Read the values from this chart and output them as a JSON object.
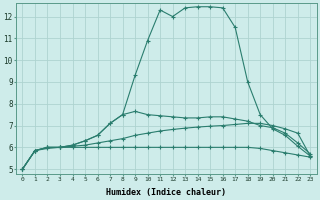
{
  "xlabel": "Humidex (Indice chaleur)",
  "bg_color": "#ceecea",
  "grid_color": "#aed4d0",
  "line_color": "#2a7d6e",
  "xmin": -0.5,
  "xmax": 23.5,
  "ymin": 4.8,
  "ymax": 12.6,
  "series": [
    {
      "x": [
        0,
        1,
        2,
        3,
        4,
        5,
        6,
        7,
        8,
        9,
        10,
        11,
        12,
        13,
        14,
        15,
        16,
        17,
        18,
        19,
        20,
        21,
        22,
        23
      ],
      "y": [
        5.0,
        5.85,
        5.95,
        6.0,
        6.0,
        6.0,
        6.0,
        6.0,
        6.0,
        6.0,
        6.0,
        6.0,
        6.0,
        6.0,
        6.0,
        6.0,
        6.0,
        6.0,
        6.0,
        5.95,
        5.85,
        5.75,
        5.65,
        5.55
      ]
    },
    {
      "x": [
        0,
        1,
        2,
        3,
        4,
        5,
        6,
        7,
        8,
        9,
        10,
        11,
        12,
        13,
        14,
        15,
        16,
        17,
        18,
        19,
        20,
        21,
        22,
        23
      ],
      "y": [
        5.0,
        5.85,
        6.0,
        6.0,
        6.05,
        6.1,
        6.2,
        6.3,
        6.4,
        6.55,
        6.65,
        6.75,
        6.82,
        6.88,
        6.93,
        6.97,
        7.0,
        7.05,
        7.1,
        7.1,
        7.0,
        6.85,
        6.65,
        5.6
      ]
    },
    {
      "x": [
        0,
        1,
        2,
        3,
        4,
        5,
        6,
        7,
        8,
        9,
        10,
        11,
        12,
        13,
        14,
        15,
        16,
        17,
        18,
        19,
        20,
        21,
        22,
        23
      ],
      "y": [
        5.0,
        5.85,
        6.0,
        6.0,
        6.1,
        6.3,
        6.55,
        7.1,
        7.5,
        7.65,
        7.5,
        7.45,
        7.4,
        7.35,
        7.35,
        7.4,
        7.4,
        7.3,
        7.2,
        7.0,
        6.9,
        6.65,
        6.2,
        5.7
      ]
    },
    {
      "x": [
        0,
        1,
        2,
        3,
        4,
        5,
        6,
        7,
        8,
        9,
        10,
        11,
        12,
        13,
        14,
        15,
        16,
        17,
        18,
        19,
        20,
        21,
        22,
        23
      ],
      "y": [
        5.0,
        5.85,
        6.0,
        6.0,
        6.1,
        6.3,
        6.55,
        7.1,
        7.5,
        9.3,
        10.9,
        12.3,
        12.0,
        12.4,
        12.45,
        12.45,
        12.4,
        11.5,
        9.0,
        7.5,
        6.85,
        6.55,
        6.05,
        5.6
      ]
    }
  ],
  "yticks": [
    5,
    6,
    7,
    8,
    9,
    10,
    11,
    12
  ],
  "xticks": [
    0,
    1,
    2,
    3,
    4,
    5,
    6,
    7,
    8,
    9,
    10,
    11,
    12,
    13,
    14,
    15,
    16,
    17,
    18,
    19,
    20,
    21,
    22,
    23
  ]
}
